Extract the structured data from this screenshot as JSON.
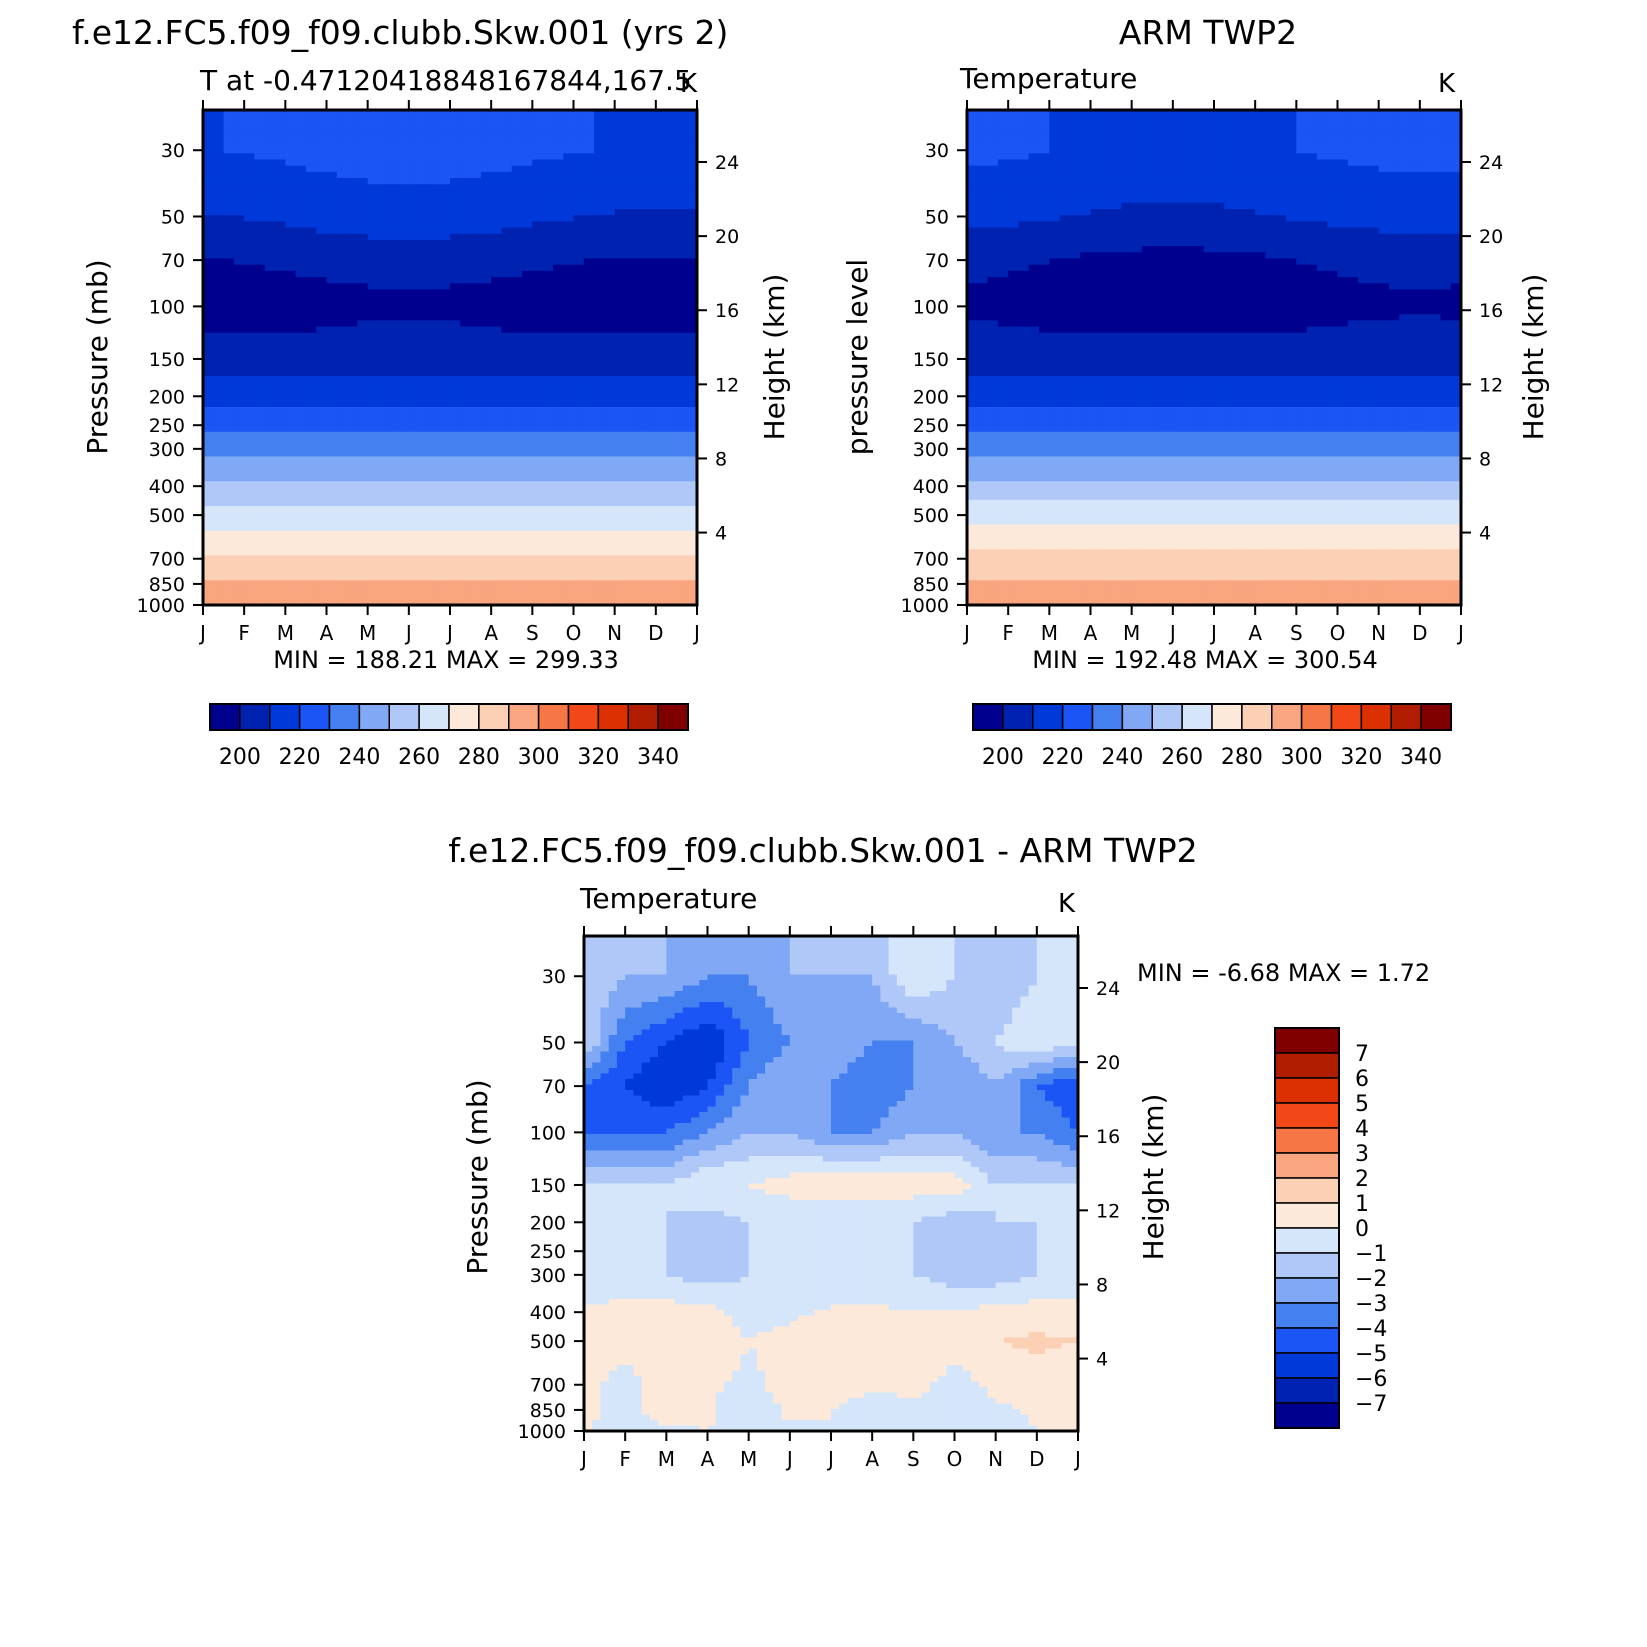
{
  "months": [
    "J",
    "F",
    "M",
    "A",
    "M",
    "J",
    "J",
    "A",
    "S",
    "O",
    "N",
    "D",
    "J"
  ],
  "pressure_ticks": [
    30,
    50,
    70,
    100,
    150,
    200,
    250,
    300,
    400,
    500,
    700,
    850,
    1000
  ],
  "height_ticks": [
    24,
    20,
    16,
    12,
    8,
    4
  ],
  "panels": {
    "model": {
      "title": "f.e12.FC5.f09_f09.clubb.Skw.001 (yrs 2)",
      "subtitle": "T at -0.47120418848167844,167.5",
      "units": "K",
      "ylabel_left": "Pressure (mb)",
      "ylabel_right": "Height (km)",
      "stats": "MIN = 188.21 MAX = 299.33"
    },
    "obs": {
      "title": "ARM TWP2",
      "subtitle": "Temperature",
      "units": "K",
      "ylabel_left": "pressure level",
      "ylabel_right": "Height (km)",
      "stats": "MIN = 192.48 MAX = 300.54"
    },
    "diff": {
      "title": "f.e12.FC5.f09_f09.clubb.Skw.001 - ARM TWP2",
      "subtitle": "Temperature",
      "units": "K",
      "ylabel_left": "Pressure (mb)",
      "ylabel_right": "Height (km)",
      "stats": "MIN = -6.68 MAX = 1.72"
    }
  },
  "colorbar_abs": {
    "labels": [
      "200",
      "220",
      "240",
      "260",
      "280",
      "300",
      "320",
      "340"
    ],
    "colors": [
      "#00008f",
      "#0022b0",
      "#0039d9",
      "#1b55f5",
      "#4580f0",
      "#80a8f5",
      "#b0c8f8",
      "#d5e6fb",
      "#fde9d9",
      "#fcd0b5",
      "#f9a57f",
      "#f77646",
      "#f24818",
      "#dd3000",
      "#b01c00",
      "#800000"
    ]
  },
  "colorbar_diff": {
    "labels": [
      "7",
      "6",
      "5",
      "4",
      "3",
      "2",
      "1",
      "0",
      "-1",
      "-2",
      "-3",
      "-4",
      "-5",
      "-6",
      "-7"
    ],
    "colors": [
      "#800000",
      "#b01c00",
      "#dd3000",
      "#f24818",
      "#f77646",
      "#f9a57f",
      "#fcd0b5",
      "#fde9d9",
      "#d5e6fb",
      "#b0c8f8",
      "#80a8f5",
      "#4580f0",
      "#1b55f5",
      "#0039d9",
      "#0022b0",
      "#00008f"
    ]
  },
  "chart_data": [
    {
      "type": "heatmap",
      "title": "f.e12.FC5.f09_f09.clubb.Skw.001 (yrs 2)",
      "subtitle": "T at -0.47120418848167844,167.5",
      "units": "K",
      "x": [
        "J",
        "F",
        "M",
        "A",
        "M",
        "J",
        "J",
        "A",
        "S",
        "O",
        "N",
        "D",
        "J"
      ],
      "y_pressure_mb": [
        30,
        50,
        70,
        100,
        150,
        200,
        250,
        300,
        400,
        500,
        700,
        850,
        1000
      ],
      "contour_levels": [
        195,
        200,
        205,
        210,
        215,
        220,
        225,
        230,
        235,
        240,
        245,
        250,
        255,
        260,
        265,
        270,
        275,
        280,
        285,
        290,
        295,
        300,
        305,
        310,
        315,
        320,
        325,
        330,
        335,
        340,
        345
      ],
      "profile_K": [
        {
          "p": 30,
          "t": 222
        },
        {
          "p": 50,
          "t": 212
        },
        {
          "p": 70,
          "t": 202
        },
        {
          "p": 100,
          "t": 194
        },
        {
          "p": 150,
          "t": 205
        },
        {
          "p": 200,
          "t": 217
        },
        {
          "p": 250,
          "t": 228
        },
        {
          "p": 300,
          "t": 238
        },
        {
          "p": 400,
          "t": 252
        },
        {
          "p": 500,
          "t": 265
        },
        {
          "p": 700,
          "t": 282
        },
        {
          "p": 850,
          "t": 291
        },
        {
          "p": 1000,
          "t": 299
        }
      ],
      "min": 188.21,
      "max": 299.33
    },
    {
      "type": "heatmap",
      "title": "ARM TWP2",
      "subtitle": "Temperature",
      "units": "K",
      "x": [
        "J",
        "F",
        "M",
        "A",
        "M",
        "J",
        "J",
        "A",
        "S",
        "O",
        "N",
        "D",
        "J"
      ],
      "y_pressure_mb": [
        30,
        50,
        70,
        100,
        150,
        200,
        250,
        300,
        400,
        500,
        700,
        850,
        1000
      ],
      "profile_K": [
        {
          "p": 30,
          "t": 220
        },
        {
          "p": 50,
          "t": 211
        },
        {
          "p": 70,
          "t": 200
        },
        {
          "p": 100,
          "t": 195
        },
        {
          "p": 150,
          "t": 205
        },
        {
          "p": 200,
          "t": 217
        },
        {
          "p": 250,
          "t": 228
        },
        {
          "p": 300,
          "t": 238
        },
        {
          "p": 400,
          "t": 252
        },
        {
          "p": 500,
          "t": 266
        },
        {
          "p": 700,
          "t": 283
        },
        {
          "p": 850,
          "t": 292
        },
        {
          "p": 1000,
          "t": 300
        }
      ],
      "min": 192.48,
      "max": 300.54
    },
    {
      "type": "heatmap",
      "title": "f.e12.FC5.f09_f09.clubb.Skw.001 - ARM TWP2",
      "subtitle": "Temperature",
      "units": "K",
      "x": [
        "J",
        "F",
        "M",
        "A",
        "M",
        "J",
        "J",
        "A",
        "S",
        "O",
        "N",
        "D",
        "J"
      ],
      "y_pressure_mb": [
        30,
        50,
        70,
        100,
        150,
        200,
        250,
        300,
        400,
        500,
        700,
        850,
        1000
      ],
      "contour_levels": [
        -7,
        -6,
        -5,
        -4,
        -3,
        -2,
        -1,
        0,
        1,
        2,
        3,
        4,
        5,
        6,
        7
      ],
      "grid_rows_K": [
        {
          "p": 30,
          "v": [
            -1,
            -2,
            -2,
            -3,
            -3,
            -2,
            -2,
            -2,
            0,
            -1,
            -2,
            -1,
            -1
          ]
        },
        {
          "p": 50,
          "v": [
            -1,
            -4,
            -5,
            -6,
            -4,
            -3,
            -2,
            -3,
            -3,
            -2,
            -1,
            0,
            -1
          ]
        },
        {
          "p": 70,
          "v": [
            -4,
            -5,
            -6,
            -5,
            -3,
            -2,
            -3,
            -4,
            -3,
            -3,
            -2,
            -4,
            -5
          ]
        },
        {
          "p": 100,
          "v": [
            -4,
            -4,
            -4,
            -3,
            -2,
            -2,
            -3,
            -3,
            -2,
            -2,
            -3,
            -3,
            -4
          ]
        },
        {
          "p": 150,
          "v": [
            -1,
            -1,
            -1,
            0,
            0,
            0.5,
            0.8,
            0.8,
            0.5,
            0.5,
            -1,
            -1,
            -1
          ]
        },
        {
          "p": 200,
          "v": [
            -1,
            -1,
            -1,
            -1.5,
            -1,
            -1,
            -1,
            -1,
            -1,
            -1.5,
            -1,
            -1,
            -1
          ]
        },
        {
          "p": 300,
          "v": [
            -1,
            -1,
            -1,
            -1.5,
            -1,
            -1,
            -1,
            -1,
            -1,
            -1.5,
            -1.5,
            -1,
            -1
          ]
        },
        {
          "p": 400,
          "v": [
            0.2,
            0.5,
            0.5,
            0.3,
            -0.5,
            -0.3,
            0.2,
            0.2,
            0.1,
            0.1,
            0.3,
            0.5,
            0.4
          ]
        },
        {
          "p": 500,
          "v": [
            1,
            0.5,
            1,
            1,
            0,
            0.5,
            1,
            1,
            1,
            0.5,
            1,
            1.2,
            1
          ]
        },
        {
          "p": 700,
          "v": [
            0.3,
            -0.5,
            0.5,
            0.2,
            -0.3,
            0.5,
            0.5,
            0.5,
            0.4,
            -0.5,
            0.3,
            0.5,
            0.2
          ]
        },
        {
          "p": 850,
          "v": [
            0.2,
            -0.3,
            0.5,
            0.2,
            -1,
            0.3,
            0.1,
            -1,
            -0.3,
            -1,
            -0.2,
            0.1,
            0.5
          ]
        },
        {
          "p": 1000,
          "v": [
            0,
            -0.2,
            -0.2,
            0,
            -0.3,
            -0.2,
            -0.2,
            0,
            -0.3,
            -0.3,
            -0.2,
            0,
            0
          ]
        }
      ],
      "min": -6.68,
      "max": 1.72
    }
  ]
}
